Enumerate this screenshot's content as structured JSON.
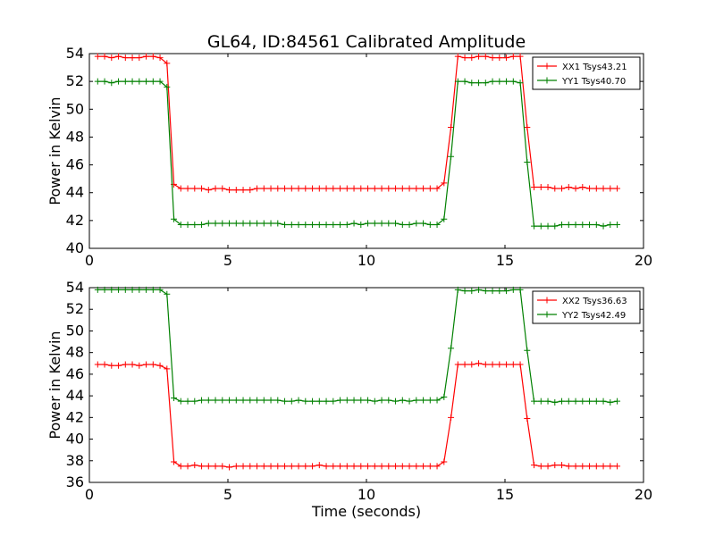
{
  "figure": {
    "title": "GL64, ID:84561 Calibrated Amplitude"
  },
  "chart_data": [
    {
      "type": "line",
      "title": "GL64, ID:84561 Calibrated Amplitude",
      "xlabel": "",
      "ylabel": "Power in Kelvin",
      "xlim": [
        0,
        20
      ],
      "ylim": [
        40,
        54
      ],
      "xticks": [
        0,
        5,
        10,
        15,
        20
      ],
      "yticks": [
        40,
        42,
        44,
        46,
        48,
        50,
        52,
        54
      ],
      "grid": false,
      "legend_position": "top-right",
      "series": [
        {
          "name": "XX1 Tsys43.21",
          "color": "#ff0000",
          "x": [
            0.3,
            0.55,
            0.8,
            1.05,
            1.3,
            1.55,
            1.8,
            2.05,
            2.3,
            2.55,
            2.8,
            3.05,
            3.3,
            3.55,
            3.8,
            4.05,
            4.3,
            4.55,
            4.8,
            5.05,
            5.3,
            5.55,
            5.8,
            6.05,
            6.3,
            6.55,
            6.8,
            7.05,
            7.3,
            7.55,
            7.8,
            8.05,
            8.3,
            8.55,
            8.8,
            9.05,
            9.3,
            9.55,
            9.8,
            10.05,
            10.3,
            10.55,
            10.8,
            11.05,
            11.3,
            11.55,
            11.8,
            12.05,
            12.3,
            12.55,
            12.8,
            13.05,
            13.3,
            13.55,
            13.8,
            14.05,
            14.3,
            14.55,
            14.8,
            15.05,
            15.3,
            15.55,
            15.8,
            16.05,
            16.3,
            16.55,
            16.8,
            17.05,
            17.3,
            17.55,
            17.8,
            18.05,
            18.3,
            18.55,
            18.8,
            19.05
          ],
          "y": [
            53.8,
            53.8,
            53.7,
            53.8,
            53.7,
            53.7,
            53.7,
            53.8,
            53.8,
            53.7,
            53.3,
            44.6,
            44.3,
            44.3,
            44.3,
            44.3,
            44.2,
            44.3,
            44.3,
            44.2,
            44.2,
            44.2,
            44.2,
            44.3,
            44.3,
            44.3,
            44.3,
            44.3,
            44.3,
            44.3,
            44.3,
            44.3,
            44.3,
            44.3,
            44.3,
            44.3,
            44.3,
            44.3,
            44.3,
            44.3,
            44.3,
            44.3,
            44.3,
            44.3,
            44.3,
            44.3,
            44.3,
            44.3,
            44.3,
            44.3,
            44.7,
            48.7,
            53.8,
            53.7,
            53.7,
            53.8,
            53.8,
            53.7,
            53.7,
            53.7,
            53.8,
            53.8,
            48.7,
            44.4,
            44.4,
            44.4,
            44.3,
            44.3,
            44.4,
            44.3,
            44.4,
            44.3,
            44.3,
            44.3,
            44.3,
            44.3
          ]
        },
        {
          "name": "YY1 Tsys40.70",
          "color": "#008000",
          "x": [
            0.3,
            0.55,
            0.8,
            1.05,
            1.3,
            1.55,
            1.8,
            2.05,
            2.3,
            2.55,
            2.8,
            3.05,
            3.3,
            3.55,
            3.8,
            4.05,
            4.3,
            4.55,
            4.8,
            5.05,
            5.3,
            5.55,
            5.8,
            6.05,
            6.3,
            6.55,
            6.8,
            7.05,
            7.3,
            7.55,
            7.8,
            8.05,
            8.3,
            8.55,
            8.8,
            9.05,
            9.3,
            9.55,
            9.8,
            10.05,
            10.3,
            10.55,
            10.8,
            11.05,
            11.3,
            11.55,
            11.8,
            12.05,
            12.3,
            12.55,
            12.8,
            13.05,
            13.3,
            13.55,
            13.8,
            14.05,
            14.3,
            14.55,
            14.8,
            15.05,
            15.3,
            15.55,
            15.8,
            16.05,
            16.3,
            16.55,
            16.8,
            17.05,
            17.3,
            17.55,
            17.8,
            18.05,
            18.3,
            18.55,
            18.8,
            19.05
          ],
          "y": [
            52.0,
            52.0,
            51.9,
            52.0,
            52.0,
            52.0,
            52.0,
            52.0,
            52.0,
            52.0,
            51.6,
            42.1,
            41.7,
            41.7,
            41.7,
            41.7,
            41.8,
            41.8,
            41.8,
            41.8,
            41.8,
            41.8,
            41.8,
            41.8,
            41.8,
            41.8,
            41.8,
            41.7,
            41.7,
            41.7,
            41.7,
            41.7,
            41.7,
            41.7,
            41.7,
            41.7,
            41.7,
            41.8,
            41.7,
            41.8,
            41.8,
            41.8,
            41.8,
            41.8,
            41.7,
            41.7,
            41.8,
            41.8,
            41.7,
            41.7,
            42.1,
            46.6,
            52.0,
            52.0,
            51.9,
            51.9,
            51.9,
            52.0,
            52.0,
            52.0,
            52.0,
            51.9,
            46.2,
            41.6,
            41.6,
            41.6,
            41.6,
            41.7,
            41.7,
            41.7,
            41.7,
            41.7,
            41.7,
            41.6,
            41.7,
            41.7
          ]
        }
      ]
    },
    {
      "type": "line",
      "title": "",
      "xlabel": "Time (seconds)",
      "ylabel": "Power in Kelvin",
      "xlim": [
        0,
        20
      ],
      "ylim": [
        36,
        54
      ],
      "xticks": [
        0,
        5,
        10,
        15,
        20
      ],
      "yticks": [
        36,
        38,
        40,
        42,
        44,
        46,
        48,
        50,
        52,
        54
      ],
      "grid": false,
      "legend_position": "top-right",
      "series": [
        {
          "name": "XX2 Tsys36.63",
          "color": "#ff0000",
          "x": [
            0.3,
            0.55,
            0.8,
            1.05,
            1.3,
            1.55,
            1.8,
            2.05,
            2.3,
            2.55,
            2.8,
            3.05,
            3.3,
            3.55,
            3.8,
            4.05,
            4.3,
            4.55,
            4.8,
            5.05,
            5.3,
            5.55,
            5.8,
            6.05,
            6.3,
            6.55,
            6.8,
            7.05,
            7.3,
            7.55,
            7.8,
            8.05,
            8.3,
            8.55,
            8.8,
            9.05,
            9.3,
            9.55,
            9.8,
            10.05,
            10.3,
            10.55,
            10.8,
            11.05,
            11.3,
            11.55,
            11.8,
            12.05,
            12.3,
            12.55,
            12.8,
            13.05,
            13.3,
            13.55,
            13.8,
            14.05,
            14.3,
            14.55,
            14.8,
            15.05,
            15.3,
            15.55,
            15.8,
            16.05,
            16.3,
            16.55,
            16.8,
            17.05,
            17.3,
            17.55,
            17.8,
            18.05,
            18.3,
            18.55,
            18.8,
            19.05
          ],
          "y": [
            46.9,
            46.9,
            46.8,
            46.8,
            46.9,
            46.9,
            46.8,
            46.9,
            46.9,
            46.8,
            46.5,
            37.9,
            37.5,
            37.5,
            37.6,
            37.5,
            37.5,
            37.5,
            37.5,
            37.4,
            37.5,
            37.5,
            37.5,
            37.5,
            37.5,
            37.5,
            37.5,
            37.5,
            37.5,
            37.5,
            37.5,
            37.5,
            37.6,
            37.5,
            37.5,
            37.5,
            37.5,
            37.5,
            37.5,
            37.5,
            37.5,
            37.5,
            37.5,
            37.5,
            37.5,
            37.5,
            37.5,
            37.5,
            37.5,
            37.5,
            37.9,
            42.0,
            46.9,
            46.9,
            46.9,
            47.0,
            46.9,
            46.9,
            46.9,
            46.9,
            46.9,
            46.9,
            41.9,
            37.6,
            37.5,
            37.5,
            37.6,
            37.6,
            37.5,
            37.5,
            37.5,
            37.5,
            37.5,
            37.5,
            37.5,
            37.5
          ]
        },
        {
          "name": "YY2 Tsys42.49",
          "color": "#008000",
          "x": [
            0.3,
            0.55,
            0.8,
            1.05,
            1.3,
            1.55,
            1.8,
            2.05,
            2.3,
            2.55,
            2.8,
            3.05,
            3.3,
            3.55,
            3.8,
            4.05,
            4.3,
            4.55,
            4.8,
            5.05,
            5.3,
            5.55,
            5.8,
            6.05,
            6.3,
            6.55,
            6.8,
            7.05,
            7.3,
            7.55,
            7.8,
            8.05,
            8.3,
            8.55,
            8.8,
            9.05,
            9.3,
            9.55,
            9.8,
            10.05,
            10.3,
            10.55,
            10.8,
            11.05,
            11.3,
            11.55,
            11.8,
            12.05,
            12.3,
            12.55,
            12.8,
            13.05,
            13.3,
            13.55,
            13.8,
            14.05,
            14.3,
            14.55,
            14.8,
            15.05,
            15.3,
            15.55,
            15.8,
            16.05,
            16.3,
            16.55,
            16.8,
            17.05,
            17.3,
            17.55,
            17.8,
            18.05,
            18.3,
            18.55,
            18.8,
            19.05
          ],
          "y": [
            53.8,
            53.8,
            53.8,
            53.8,
            53.8,
            53.8,
            53.8,
            53.8,
            53.8,
            53.8,
            53.4,
            43.8,
            43.5,
            43.5,
            43.5,
            43.6,
            43.6,
            43.6,
            43.6,
            43.6,
            43.6,
            43.6,
            43.6,
            43.6,
            43.6,
            43.6,
            43.6,
            43.5,
            43.5,
            43.6,
            43.5,
            43.5,
            43.5,
            43.5,
            43.5,
            43.6,
            43.6,
            43.6,
            43.6,
            43.6,
            43.5,
            43.6,
            43.6,
            43.5,
            43.6,
            43.5,
            43.6,
            43.6,
            43.6,
            43.6,
            43.9,
            48.4,
            53.8,
            53.7,
            53.7,
            53.8,
            53.7,
            53.7,
            53.7,
            53.7,
            53.8,
            53.8,
            48.2,
            43.5,
            43.5,
            43.5,
            43.4,
            43.5,
            43.5,
            43.5,
            43.5,
            43.5,
            43.5,
            43.5,
            43.4,
            43.5
          ]
        }
      ]
    }
  ]
}
